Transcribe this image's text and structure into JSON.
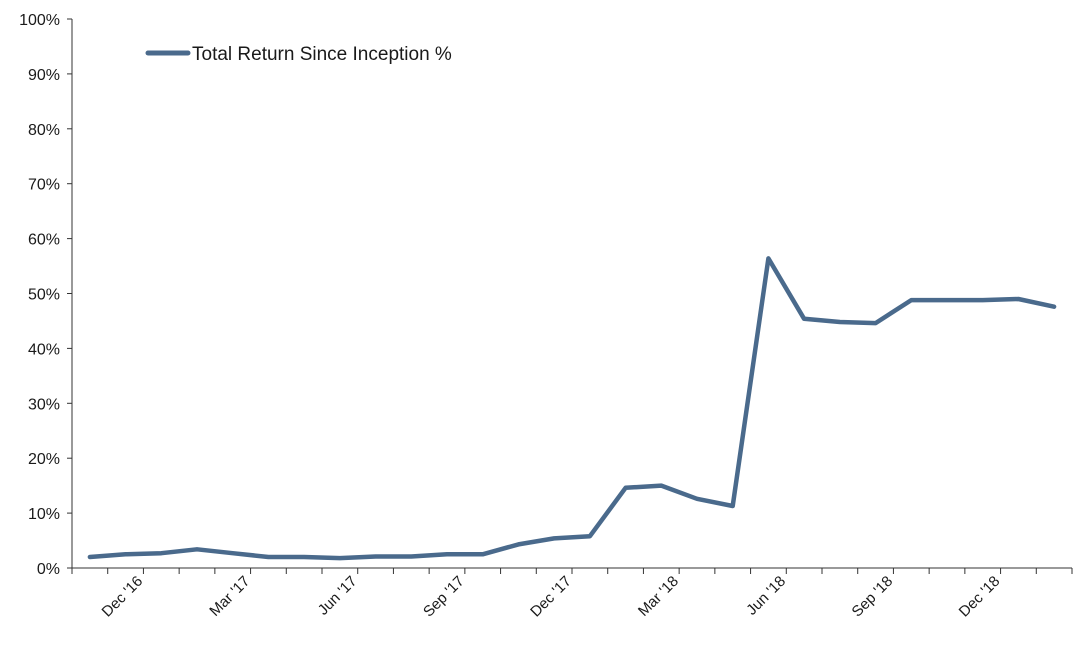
{
  "chart_data": {
    "type": "line",
    "title": "",
    "xlabel": "",
    "ylabel": "",
    "ylim": [
      0,
      100
    ],
    "y_ticks": [
      "0%",
      "10%",
      "20%",
      "30%",
      "40%",
      "50%",
      "60%",
      "70%",
      "80%",
      "90%",
      "100%"
    ],
    "x_tick_labels": [
      "Dec '16",
      "Mar '17",
      "Jun '17",
      "Sep '17",
      "Dec '17",
      "Mar '18",
      "Jun '18",
      "Sep '18",
      "Dec '18"
    ],
    "legend_position": "top-left",
    "grid": false,
    "series": [
      {
        "name": "Total Return Since Inception %",
        "color": "#4a6a8c",
        "values": [
          2.0,
          2.5,
          2.7,
          3.4,
          2.7,
          2.0,
          2.0,
          1.8,
          2.1,
          2.1,
          2.5,
          2.5,
          4.3,
          5.4,
          5.8,
          14.6,
          15.0,
          12.6,
          11.3,
          56.4,
          45.4,
          44.8,
          44.6,
          48.8,
          48.8,
          48.8,
          49.0,
          47.6
        ]
      }
    ]
  }
}
